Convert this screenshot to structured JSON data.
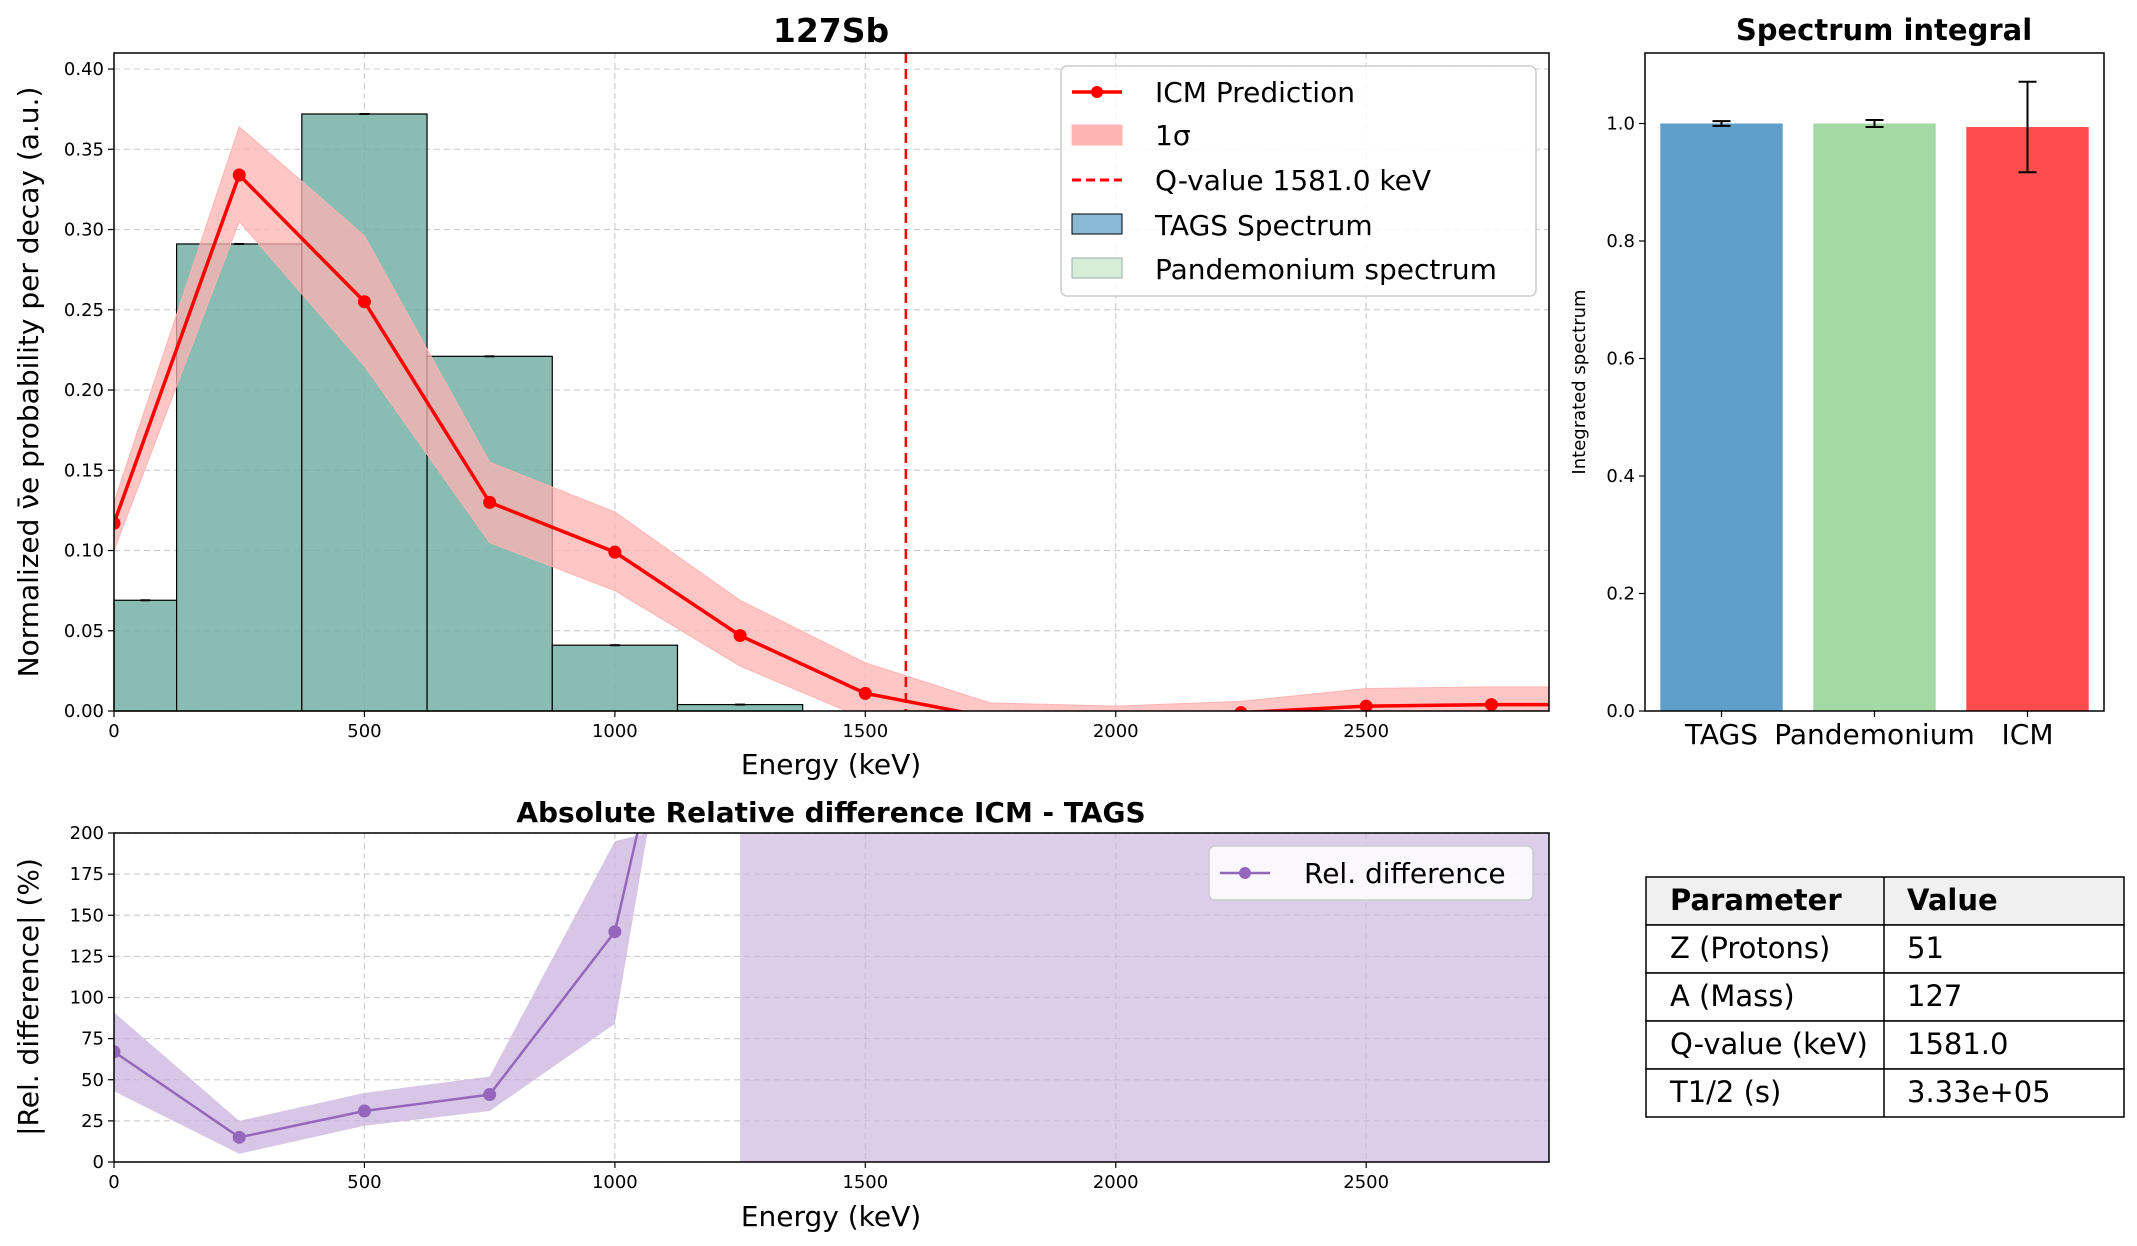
{
  "colors": {
    "icm": "#ff0000",
    "icm_band": "#ffb3b3",
    "tags_bar": "#5aa0a0",
    "pandemonium": "#b5dfb5",
    "rel": "#9467bd",
    "rel_band": "#c9b3de",
    "bar_tags": "#5f9fca",
    "bar_pand": "#a3d9a3",
    "bar_icm": "#ff4d4d"
  },
  "chart_data": [
    {
      "type": "bar",
      "title": "127Sb",
      "xlabel": "Energy (keV)",
      "ylabel": "Normalized ν̄e probability per decay (a.u.)",
      "xlim": [
        0,
        2865
      ],
      "ylim": [
        0,
        0.41
      ],
      "xticks": [
        "0",
        "500",
        "1000",
        "1500",
        "2000",
        "2500"
      ],
      "xtick_values": [
        0,
        500,
        1000,
        1500,
        2000,
        2500
      ],
      "yticks": [
        "0.00",
        "0.05",
        "0.10",
        "0.15",
        "0.20",
        "0.25",
        "0.30",
        "0.35",
        "0.40"
      ],
      "ytick_values": [
        0,
        0.05,
        0.1,
        0.15,
        0.2,
        0.25,
        0.3,
        0.35,
        0.4
      ],
      "grid": true,
      "legend_position": "top-right",
      "tags_bins": [
        {
          "x0": 0,
          "x1": 125,
          "value": 0.069
        },
        {
          "x0": 125,
          "x1": 375,
          "value": 0.291
        },
        {
          "x0": 375,
          "x1": 625,
          "value": 0.372
        },
        {
          "x0": 625,
          "x1": 875,
          "value": 0.221
        },
        {
          "x0": 875,
          "x1": 1125,
          "value": 0.041
        },
        {
          "x0": 1125,
          "x1": 1375,
          "value": 0.004
        }
      ],
      "icm_points": [
        {
          "x": 0,
          "y": 0.117
        },
        {
          "x": 250,
          "y": 0.334
        },
        {
          "x": 500,
          "y": 0.255
        },
        {
          "x": 750,
          "y": 0.13
        },
        {
          "x": 1000,
          "y": 0.099
        },
        {
          "x": 1250,
          "y": 0.047
        },
        {
          "x": 1500,
          "y": 0.011
        },
        {
          "x": 1750,
          "y": -0.004
        },
        {
          "x": 2000,
          "y": -0.006
        },
        {
          "x": 2250,
          "y": -0.001
        },
        {
          "x": 2500,
          "y": 0.003
        },
        {
          "x": 2750,
          "y": 0.004
        },
        {
          "x": 2865,
          "y": 0.004
        }
      ],
      "icm_marker_x": [
        0,
        250,
        500,
        750,
        1000,
        1250,
        1500,
        2250,
        2500,
        2750
      ],
      "icm_band_upper": [
        0.13,
        0.364,
        0.296,
        0.155,
        0.124,
        0.069,
        0.03,
        0.005,
        0.003,
        0.006,
        0.014,
        0.015,
        0.015
      ],
      "icm_band_lower": [
        0.1,
        0.305,
        0.215,
        0.105,
        0.075,
        0.028,
        -0.005,
        -0.013,
        -0.015,
        -0.008,
        -0.006,
        -0.006,
        -0.006
      ],
      "q_value": 1581.0,
      "legend": [
        {
          "label": "ICM Prediction",
          "kind": "line-marker"
        },
        {
          "label": "1σ",
          "kind": "band"
        },
        {
          "label": "Q-value 1581.0 keV",
          "kind": "dashed"
        },
        {
          "label": "TAGS Spectrum",
          "kind": "bar"
        },
        {
          "label": "Pandemonium spectrum",
          "kind": "bar-light"
        }
      ]
    },
    {
      "type": "bar",
      "title": "Spectrum integral",
      "ylabel": "Integrated spectrum",
      "ylim": [
        0,
        1.12
      ],
      "yticks": [
        "0.0",
        "0.2",
        "0.4",
        "0.6",
        "0.8",
        "1.0"
      ],
      "ytick_values": [
        0,
        0.2,
        0.4,
        0.6,
        0.8,
        1.0
      ],
      "categories": [
        "TAGS",
        "Pandemonium",
        "ICM"
      ],
      "values": [
        1.0,
        1.0,
        0.994
      ],
      "errors": [
        0.004,
        0.006,
        0.077
      ]
    },
    {
      "type": "line",
      "title": "Absolute Relative difference ICM - TAGS",
      "xlabel": "Energy (keV)",
      "ylabel": "|Rel. difference| (%)",
      "xlim": [
        0,
        2865
      ],
      "ylim": [
        0,
        200
      ],
      "xticks": [
        "0",
        "500",
        "1000",
        "1500",
        "2000",
        "2500"
      ],
      "xtick_values": [
        0,
        500,
        1000,
        1500,
        2000,
        2500
      ],
      "yticks": [
        "0",
        "25",
        "50",
        "75",
        "100",
        "125",
        "150",
        "175",
        "200"
      ],
      "ytick_values": [
        0,
        25,
        50,
        75,
        100,
        125,
        150,
        175,
        200
      ],
      "grid": true,
      "legend_position": "top-right",
      "series": [
        {
          "name": "Rel. difference",
          "x": [
            0,
            250,
            500,
            750,
            1000,
            1045
          ],
          "y": [
            67,
            15,
            31,
            41,
            140,
            200
          ],
          "marker_count": 5
        }
      ],
      "band_x": [
        0,
        250,
        500,
        750,
        1000,
        1065,
        1070
      ],
      "band_upper": [
        91,
        25,
        42,
        52,
        195,
        200,
        200
      ],
      "band_lower": [
        43,
        5,
        22,
        31,
        84,
        200,
        200
      ],
      "shaded_region": [
        1250,
        2865
      ]
    }
  ],
  "table": {
    "headers": [
      "Parameter",
      "Value"
    ],
    "rows": [
      {
        "param": "Z (Protons)",
        "value": "51"
      },
      {
        "param": "A (Mass)",
        "value": "127"
      },
      {
        "param": "Q-value (keV)",
        "value": "1581.0"
      },
      {
        "param": "T1/2 (s)",
        "value": "3.33e+05"
      }
    ]
  }
}
